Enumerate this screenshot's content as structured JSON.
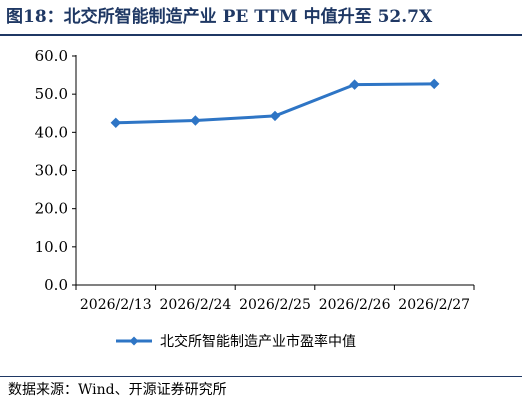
{
  "title": "图18：北交所智能制造产业 PE TTM 中值升至 52.7X",
  "source": "数据来源：Wind、开源证券研究所",
  "colors": {
    "title": "#1f3864",
    "series": "#2e75c5",
    "axis": "#000000"
  },
  "chart_data": {
    "type": "line",
    "categories": [
      "2026/2/13",
      "2026/2/24",
      "2026/2/25",
      "2026/2/26",
      "2026/2/27"
    ],
    "series": [
      {
        "name": "北交所智能制造产业市盈率中值",
        "values": [
          42.5,
          43.1,
          44.3,
          52.5,
          52.7
        ],
        "marker": "diamond"
      }
    ],
    "y_ticks": [
      "0.0",
      "10.0",
      "20.0",
      "30.0",
      "40.0",
      "50.0",
      "60.0"
    ],
    "ylim": [
      0,
      60
    ],
    "grid": false,
    "legend_position": "bottom"
  }
}
